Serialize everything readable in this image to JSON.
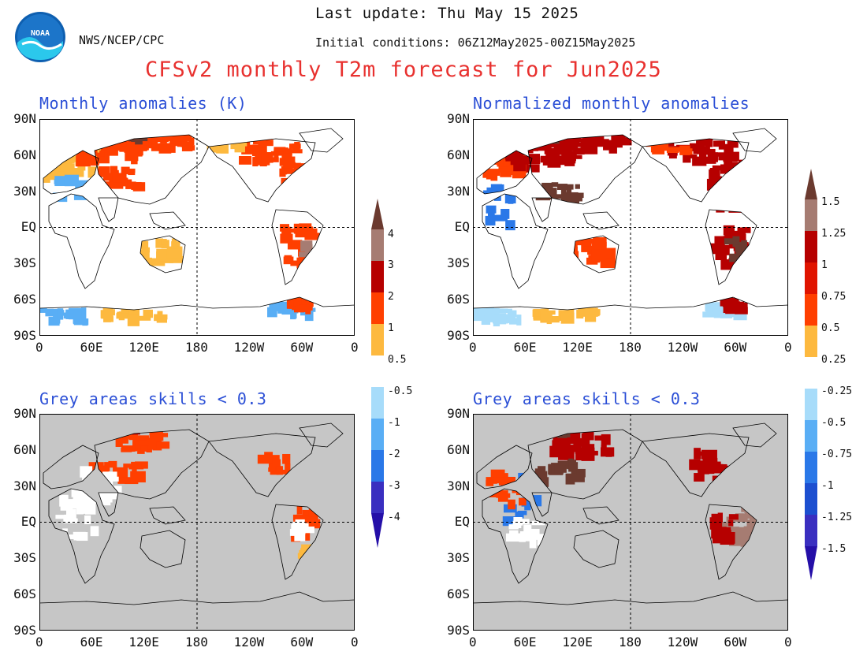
{
  "header": {
    "last_update": "Last update: Thu May 15 2025",
    "agency": "NWS/NCEP/CPC",
    "initial_conditions": "Initial conditions: 06Z12May2025-00Z15May2025",
    "title": "CFSv2 monthly T2m forecast for Jun2025",
    "logo_text": "NOAA"
  },
  "panels": [
    {
      "title": "Monthly anomalies (K)",
      "grey_mask": false
    },
    {
      "title": "Normalized monthly anomalies",
      "grey_mask": false
    },
    {
      "title": "Grey areas skills < 0.3",
      "grey_mask": true
    },
    {
      "title": "Grey areas skills < 0.3",
      "grey_mask": true
    }
  ],
  "axes": {
    "lat_labels": [
      "90N",
      "60N",
      "30N",
      "EQ",
      "30S",
      "60S",
      "90S"
    ],
    "lon_labels": [
      "0",
      "60E",
      "120E",
      "180",
      "120W",
      "60W",
      "0"
    ]
  },
  "colorbars": [
    {
      "upper_labels": [
        "4",
        "3",
        "2",
        "1",
        "0.5"
      ],
      "lower_labels": [
        "-0.5",
        "-1",
        "-2",
        "-3",
        "-4"
      ]
    },
    {
      "upper_labels": [
        "1.5",
        "1.25",
        "1",
        "0.75",
        "0.5",
        "0.25"
      ],
      "lower_labels": [
        "-0.25",
        "-0.5",
        "-0.75",
        "-1",
        "-1.25",
        "-1.5"
      ]
    }
  ],
  "colors": {
    "title_red": "#e8312f",
    "panel_title_blue": "#2b4fd6",
    "grey_mask": "#c6c6c6",
    "warm": [
      "#fdb93f",
      "#ff3f00",
      "#b60000",
      "#a67c72",
      "#6b3a2f"
    ],
    "cool": [
      "#a7dcfa",
      "#59aef5",
      "#2a78e8",
      "#1c4fd0",
      "#3a2fc0",
      "#250fa8"
    ]
  }
}
